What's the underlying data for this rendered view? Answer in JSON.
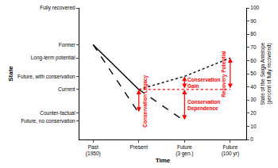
{
  "chart_data": {
    "type": "line",
    "x_label": "Time",
    "y_label": "State",
    "y2_label": "State of the Saiga Antelope (percent of fully recovered)",
    "categories": [
      "Past (1950)",
      "Present",
      "Future (3 gen.)",
      "Future (100 yr)"
    ],
    "series": [
      {
        "color": "#000000",
        "line_style": "solid",
        "values": [
          72,
          38,
          null,
          null
        ]
      },
      {
        "color": "#000000",
        "line_style": "dashed",
        "values": [
          72,
          20,
          null,
          null
        ]
      },
      {
        "color": "#000000",
        "line_style": "dotted",
        "values": [
          null,
          38,
          48,
          62
        ]
      },
      {
        "color": "#000000",
        "line_style": "dashed",
        "values": [
          null,
          38,
          14,
          null
        ]
      },
      {
        "color": "#ff0000",
        "line_style": "dotted",
        "values": [
          null,
          38,
          38,
          38
        ]
      }
    ],
    "annotations": [
      {
        "text": "Conservation Legacy",
        "x": "Present",
        "from": 20,
        "to": 38
      },
      {
        "text": "Conservation Gain",
        "x": "Future (3 gen.)",
        "from": 38,
        "to": 48
      },
      {
        "text": "Conservation Dependence",
        "x": "Future (3 gen.)",
        "from": 14,
        "to": 38
      },
      {
        "text": "Recovery Potential",
        "x": "Future (100 yr)",
        "from": 38,
        "to": 62
      }
    ],
    "annotation_color": "#ff0000",
    "ylim": [
      0,
      100
    ],
    "yticks": [
      {
        "value": 100,
        "label": "Fully recovered"
      },
      {
        "value": 72,
        "label": "Former"
      },
      {
        "value": 62,
        "label": "Long-term potential"
      },
      {
        "value": 48,
        "label": "Future, with conservation"
      },
      {
        "value": 38,
        "label": "Current"
      },
      {
        "value": 20,
        "label": "Counter-factual"
      },
      {
        "value": 14,
        "label": "Future, no conservation"
      }
    ],
    "y2lim": [
      0,
      100
    ],
    "y2ticks": [
      0,
      10,
      20,
      30,
      40,
      50,
      60,
      70,
      80,
      90,
      100
    ],
    "grid": false
  }
}
